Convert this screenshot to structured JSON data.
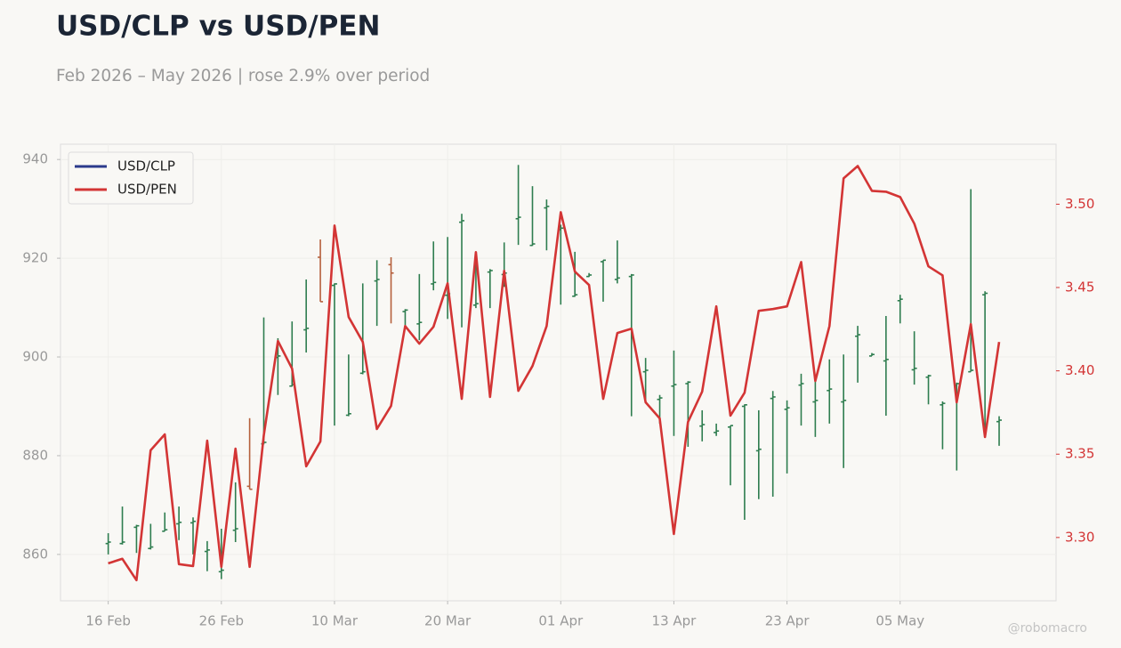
{
  "chart_data": {
    "type": "ohlc_line",
    "title": "USD/CLP vs USD/PEN",
    "subtitle": "Feb 2026 – May 2026 | rose 2.9% over period",
    "watermark": "@robomacro",
    "categories": [
      "16 Feb",
      null,
      null,
      null,
      null,
      null,
      null,
      null,
      "26 Feb",
      null,
      null,
      null,
      null,
      null,
      null,
      null,
      "10 Mar",
      null,
      null,
      null,
      null,
      null,
      null,
      null,
      "20 Mar",
      null,
      null,
      null,
      null,
      null,
      null,
      null,
      "01 Apr",
      null,
      null,
      null,
      null,
      null,
      null,
      null,
      "13 Apr",
      null,
      null,
      null,
      null,
      null,
      null,
      null,
      "23 Apr",
      null,
      null,
      null,
      null,
      null,
      null,
      null,
      "05 May",
      null,
      null,
      null,
      null,
      null,
      null,
      null
    ],
    "series": [
      {
        "name": "USD/CLP",
        "type": "ohlc",
        "color": "#2b3a8c",
        "up_color": "#2e7d4f",
        "down_color": "#b5603c",
        "open": [
          862.2,
          862.2,
          865.5,
          861.2,
          864.7,
          866.2,
          866.4,
          860.6,
          856.5,
          864.9,
          873.8,
          882.4,
          899.9,
          894.1,
          905.5,
          920.2,
          914.5,
          888.2,
          896.7,
          915.4,
          918.7,
          909.2,
          906.7,
          914.8,
          912.5,
          927.3,
          910.5,
          917.2,
          916.7,
          928.0,
          922.6,
          930.2,
          925.8,
          912.3,
          916.3,
          919.3,
          915.7,
          916.3,
          897.0,
          891.4,
          894.1,
          894.6,
          886.0,
          884.7,
          885.8,
          890.0,
          881.0,
          891.6,
          889.4,
          894.3,
          890.9,
          893.2,
          890.9,
          904.2,
          900.2,
          899.2,
          911.4,
          897.4,
          895.9,
          890.3,
          894.3,
          897.0,
          912.6,
          886.9
        ],
        "high": [
          864.3,
          869.7,
          866.0,
          866.2,
          868.5,
          869.7,
          867.5,
          862.7,
          865.2,
          874.6,
          887.6,
          908.0,
          903.8,
          907.2,
          915.7,
          923.8,
          914.9,
          900.5,
          914.9,
          919.6,
          920.2,
          909.7,
          916.8,
          923.4,
          924.3,
          929.0,
          921.1,
          917.8,
          923.2,
          938.9,
          934.6,
          931.9,
          926.8,
          921.3,
          917.0,
          919.6,
          923.6,
          916.8,
          899.8,
          892.3,
          901.3,
          895.1,
          889.2,
          886.5,
          886.1,
          890.4,
          889.2,
          893.1,
          891.2,
          896.6,
          895.7,
          899.5,
          900.5,
          906.3,
          900.8,
          908.3,
          912.6,
          905.2,
          896.4,
          891.0,
          894.8,
          934.0,
          913.3,
          888.0
        ],
        "low": [
          860.0,
          862.0,
          860.3,
          861.0,
          864.7,
          862.9,
          860.0,
          856.6,
          855.0,
          862.5,
          873.2,
          882.3,
          892.3,
          894.0,
          900.9,
          911.2,
          886.1,
          888.0,
          896.5,
          906.3,
          906.8,
          905.6,
          903.4,
          913.5,
          907.7,
          906.0,
          909.9,
          909.9,
          914.2,
          922.7,
          922.5,
          921.6,
          910.6,
          912.2,
          916.2,
          911.2,
          914.9,
          888.0,
          891.3,
          886.5,
          884.0,
          881.8,
          882.9,
          884.0,
          874.0,
          867.0,
          871.2,
          871.7,
          876.4,
          886.1,
          883.8,
          886.5,
          877.5,
          894.8,
          900.2,
          888.1,
          906.8,
          894.4,
          890.4,
          881.3,
          877.0,
          897.0,
          885.0,
          882.0
        ],
        "close": [
          862.5,
          862.5,
          865.8,
          861.5,
          865.0,
          866.5,
          866.7,
          860.9,
          856.8,
          865.2,
          873.2,
          882.7,
          900.2,
          894.4,
          905.8,
          911.2,
          914.8,
          888.5,
          897.0,
          915.7,
          917.0,
          909.5,
          907.0,
          915.1,
          912.8,
          927.6,
          910.8,
          917.5,
          917.0,
          928.3,
          922.9,
          930.5,
          926.1,
          912.6,
          916.6,
          919.6,
          916.0,
          916.6,
          897.3,
          891.7,
          894.4,
          894.9,
          886.3,
          885.0,
          886.1,
          890.3,
          881.3,
          891.9,
          889.7,
          894.6,
          891.2,
          893.5,
          891.2,
          904.5,
          900.5,
          899.5,
          911.7,
          897.7,
          896.2,
          890.6,
          894.6,
          897.3,
          912.9,
          887.2
        ]
      },
      {
        "name": "USD/PEN",
        "type": "line",
        "axis": "y2",
        "color": "#d33535",
        "values": [
          3.2845,
          3.2872,
          3.2744,
          3.3523,
          3.3619,
          3.284,
          3.2829,
          3.3581,
          3.2824,
          3.3533,
          3.2824,
          3.3613,
          3.4179,
          3.4013,
          3.3427,
          3.3576,
          3.4872,
          3.4323,
          3.4173,
          3.3651,
          3.3789,
          3.4269,
          3.4163,
          3.4264,
          3.4525,
          3.3832,
          3.4712,
          3.3843,
          3.46,
          3.388,
          3.4029,
          3.4269,
          3.4952,
          3.4595,
          3.4515,
          3.3832,
          3.4227,
          3.4253,
          3.3811,
          3.3715,
          3.3021,
          3.3693,
          3.3875,
          3.4387,
          3.3731,
          3.3869,
          3.436,
          3.4371,
          3.4387,
          3.4653,
          3.3939,
          3.4269,
          3.5155,
          3.5229,
          3.508,
          3.5075,
          3.5043,
          3.4883,
          3.4627,
          3.4573,
          3.3811,
          3.428,
          3.3603,
          3.4173
        ]
      }
    ],
    "ylim": [
      850.6,
      943.1
    ],
    "yticks": [
      860,
      880,
      900,
      920,
      940
    ],
    "y2lim": [
      3.262,
      3.536
    ],
    "y2ticks": [
      {
        "value": 3.3,
        "label": "3.30"
      },
      {
        "value": 3.35,
        "label": "3.35"
      },
      {
        "value": 3.4,
        "label": "3.40"
      },
      {
        "value": 3.45,
        "label": "3.45"
      },
      {
        "value": 3.5,
        "label": "3.50"
      }
    ],
    "grid": true,
    "legend": "upper left"
  }
}
